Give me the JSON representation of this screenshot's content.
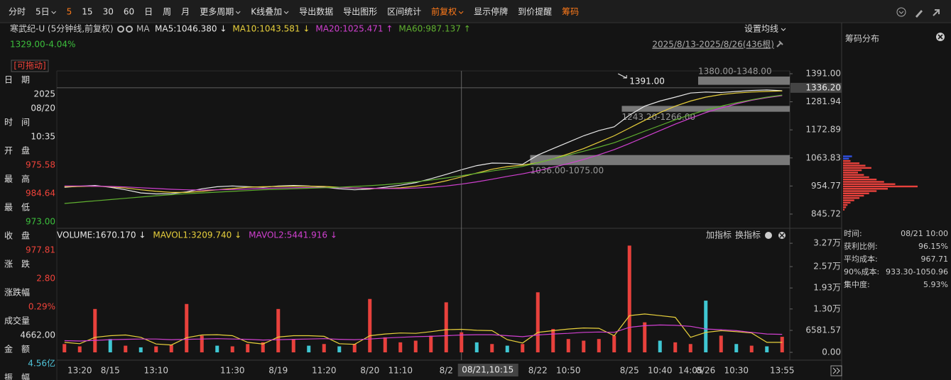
{
  "toolbar": {
    "items": [
      {
        "text": "分时"
      },
      {
        "text": "5日",
        "dropdown": true
      },
      {
        "text": "5",
        "active": true
      },
      {
        "text": "15"
      },
      {
        "text": "30"
      },
      {
        "text": "60"
      },
      {
        "text": "日"
      },
      {
        "text": "周"
      },
      {
        "text": "月"
      },
      {
        "text": "更多周期",
        "dropdown": true
      },
      {
        "text": "K线叠加",
        "dropdown": true
      },
      {
        "text": "导出数据"
      },
      {
        "text": "导出图形"
      },
      {
        "text": "区间统计"
      },
      {
        "text": "前复权",
        "dropdown": true,
        "active": true
      },
      {
        "text": "显示停牌"
      },
      {
        "text": "到价提醒"
      },
      {
        "text": "筹码",
        "active": true
      }
    ]
  },
  "header": {
    "stock": "寒武纪-U (5分钟线,前复权)",
    "ma_label": "MA",
    "price": "1329.00",
    "change": "-4.04%",
    "ma_settings": "设置均线",
    "range": "2025/8/13-2025/8/26(436根)"
  },
  "info_panel": {
    "drag": "[可拖动]",
    "rows": [
      {
        "label": "日　期",
        "values": [
          "2025",
          "08/20"
        ],
        "color": "#e0e0e0"
      },
      {
        "label": "时　间",
        "values": [
          "10:35"
        ],
        "color": "#e0e0e0"
      },
      {
        "label": "开　盘",
        "values": [
          "975.58"
        ],
        "color": "#f0433a"
      },
      {
        "label": "最　高",
        "values": [
          "984.64"
        ],
        "color": "#f0433a"
      },
      {
        "label": "最　低",
        "values": [
          "973.00"
        ],
        "color": "#3cbf3c"
      },
      {
        "label": "收　盘",
        "values": [
          "977.81"
        ],
        "color": "#f0433a"
      },
      {
        "label": "涨　跌",
        "values": [
          "2.80"
        ],
        "color": "#f0433a"
      },
      {
        "label": "涨跌幅",
        "values": [
          "0.29%"
        ],
        "color": "#f0433a"
      },
      {
        "label": "成交量",
        "values": [
          "4662.00"
        ],
        "color": "#e0e0e0"
      },
      {
        "label": "金　额",
        "values": [
          "4.56亿"
        ],
        "color": "#4fc3d9"
      },
      {
        "label": "振　幅",
        "values": []
      }
    ]
  },
  "volume_header": {
    "add": "加指标",
    "switch": "换指标"
  },
  "chip_panel": {
    "title": "筹码分布",
    "rows": [
      {
        "label": "时间:",
        "value": "08/21 10:00"
      },
      {
        "label": "获利比例:",
        "value": "96.15%"
      },
      {
        "label": "平均成本:",
        "value": "967.71"
      },
      {
        "label": "90%成本:",
        "value": "933.30-1050.96"
      },
      {
        "label": "集中度:",
        "value": "5.93%"
      }
    ]
  },
  "chart_data": [
    {
      "type": "line",
      "categories": [
        null,
        "13:20",
        null,
        "8/15",
        null,
        null,
        "13:10",
        null,
        null,
        null,
        null,
        "11:30",
        null,
        null,
        "8/19",
        null,
        null,
        "11:20",
        null,
        null,
        "8/20",
        null,
        "11:10",
        null,
        null,
        "8/2",
        null,
        null,
        null,
        null,
        null,
        "8/22",
        null,
        "10:50",
        null,
        null,
        null,
        "8/25",
        null,
        "10:40",
        null,
        "14:05",
        "8/26",
        null,
        "10:30",
        null,
        null,
        "13:55"
      ],
      "series": [
        {
          "name": "MA5:1046.380 ↓",
          "color": "#e8e8e8",
          "values": [
            950,
            954,
            957,
            950,
            940,
            928,
            924,
            925,
            932,
            944,
            952,
            955,
            952,
            950,
            955,
            957,
            955,
            950,
            944,
            940,
            943,
            950,
            958,
            968,
            983,
            1000,
            1018,
            1034,
            1044,
            1043,
            1039,
            1075,
            1100,
            1125,
            1150,
            1170,
            1185,
            1230,
            1265,
            1285,
            1300,
            1316,
            1320,
            1318,
            1322,
            1326,
            1328,
            1325
          ]
        },
        {
          "name": "MA10:1043.581 ↓",
          "color": "#e8d03c",
          "values": [
            952,
            953,
            954,
            952,
            947,
            940,
            934,
            930,
            930,
            934,
            940,
            945,
            950,
            952,
            953,
            954,
            954,
            953,
            950,
            947,
            945,
            945,
            948,
            954,
            962,
            975,
            990,
            1005,
            1020,
            1030,
            1036,
            1045,
            1060,
            1080,
            1100,
            1125,
            1150,
            1180,
            1210,
            1240,
            1265,
            1285,
            1300,
            1310,
            1316,
            1320,
            1322,
            1324
          ]
        },
        {
          "name": "MA20:1025.471 ↑",
          "color": "#d040d0",
          "values": [
            955,
            955,
            954,
            953,
            951,
            948,
            945,
            942,
            940,
            939,
            940,
            941,
            943,
            945,
            947,
            948,
            949,
            949,
            948,
            947,
            946,
            945,
            945,
            947,
            950,
            955,
            962,
            971,
            981,
            992,
            1002,
            1014,
            1028,
            1042,
            1058,
            1076,
            1096,
            1120,
            1145,
            1170,
            1195,
            1218,
            1240,
            1258,
            1274,
            1288,
            1298,
            1306
          ]
        },
        {
          "name": "MA60:987.137 ↑",
          "color": "#60b030",
          "values": [
            887,
            892,
            897,
            902,
            907,
            912,
            917,
            921,
            925,
            928,
            931,
            934,
            937,
            940,
            942,
            944,
            946,
            948,
            950,
            953,
            956,
            960,
            965,
            971,
            978,
            986,
            995,
            1004,
            1013,
            1022,
            1031,
            1045,
            1060,
            1075,
            1090,
            1106,
            1123,
            1145,
            1168,
            1190,
            1212,
            1232,
            1250,
            1265,
            1278,
            1290,
            1300,
            1308
          ]
        }
      ],
      "ylim": [
        796,
        1402
      ],
      "yticks": [
        {
          "value": 845.72,
          "label": "845.72"
        },
        {
          "value": 954.77,
          "label": "954.77"
        },
        {
          "value": 1063.83,
          "label": "1063.83"
        },
        {
          "value": 1172.89,
          "label": "1172.89"
        },
        {
          "value": 1281.94,
          "label": "1281.94"
        },
        {
          "value": 1391,
          "label": "1391.00"
        }
      ],
      "grid": false,
      "zones": [
        {
          "label": "1380.00-1348.00",
          "from": 1380,
          "to": 1348,
          "start": 42,
          "label_side": "above"
        },
        {
          "label": "1243.20-1266.00",
          "from": 1243.2,
          "to": 1266,
          "start": 37,
          "label_side": "below"
        },
        {
          "label": "1036.00-1075.00",
          "from": 1036,
          "to": 1075,
          "start": 31,
          "label_side": "below"
        }
      ],
      "peak": {
        "x": 37,
        "value": 1391,
        "label": "1391.00"
      },
      "crosshair": {
        "x": 26,
        "value": 1336.2,
        "label": "1336.20",
        "x_label": "08/21,10:15"
      }
    },
    {
      "type": "bar",
      "series": [
        {
          "name": "VOLUME:1670.170 ↓",
          "type": "bar",
          "color": "#e8e8e8",
          "values": [
            2500,
            1800,
            13000,
            4000,
            2000,
            1500,
            1800,
            2200,
            14500,
            5000,
            2000,
            1800,
            2500,
            3000,
            13000,
            4000,
            2000,
            2500,
            1800,
            2500,
            16000,
            4500,
            3000,
            3500,
            5000,
            15000,
            6000,
            3000,
            2500,
            2000,
            2500,
            18000,
            7000,
            4000,
            3500,
            4000,
            5000,
            32000,
            9000,
            3500,
            3000,
            2500,
            15500,
            5000,
            2500,
            2000,
            1800,
            4662
          ],
          "colors": [
            "#e8413c",
            "#e8413c",
            "#e8413c",
            "#3fc7d3",
            "#e8413c",
            "#3fc7d3",
            "#e8413c",
            "#e8413c",
            "#e8413c",
            "#e8413c",
            "#3fc7d3",
            "#e8413c",
            "#e8413c",
            "#e8413c",
            "#e8413c",
            "#e8413c",
            "#3fc7d3",
            "#e8413c",
            "#3fc7d3",
            "#e8413c",
            "#e8413c",
            "#e8413c",
            "#e8413c",
            "#e8413c",
            "#e8413c",
            "#e8413c",
            "#e8413c",
            "#3fc7d3",
            "#e8413c",
            "#3fc7d3",
            "#e8413c",
            "#e8413c",
            "#e8413c",
            "#e8413c",
            "#e8413c",
            "#e8413c",
            "#e8413c",
            "#e8413c",
            "#e8413c",
            "#3fc7d3",
            "#e8413c",
            "#e8413c",
            "#3fc7d3",
            "#e8413c",
            "#3fc7d3",
            "#e8413c",
            "#3fc7d3",
            "#e8413c"
          ]
        },
        {
          "name": "MAVOL1:3209.740 ↓",
          "type": "line",
          "color": "#e8d03c",
          "values": [
            3000,
            2600,
            4500,
            5000,
            5200,
            4500,
            2500,
            2200,
            4400,
            5200,
            5300,
            5000,
            3000,
            2500,
            4600,
            5000,
            5000,
            4800,
            2600,
            2400,
            5000,
            5500,
            5800,
            5700,
            6200,
            6800,
            6900,
            6600,
            6500,
            3800,
            2800,
            6000,
            6500,
            7000,
            7300,
            7200,
            5000,
            11000,
            11500,
            11000,
            10500,
            4500,
            6000,
            6500,
            6200,
            5800,
            3000,
            3000
          ]
        },
        {
          "name": "MAVOL2:5441.916 ↓",
          "type": "line",
          "color": "#d040d0",
          "values": [
            3500,
            3400,
            3600,
            3800,
            3900,
            4000,
            4000,
            3800,
            3900,
            4000,
            4100,
            4000,
            3900,
            3700,
            3800,
            3900,
            4000,
            4100,
            3900,
            3800,
            4000,
            4300,
            4500,
            4700,
            4800,
            5000,
            5200,
            5300,
            5300,
            5000,
            4700,
            5200,
            5500,
            5700,
            6000,
            6100,
            6000,
            7500,
            8000,
            8200,
            8100,
            7800,
            7000,
            6800,
            6500,
            6000,
            5500,
            5400
          ]
        }
      ],
      "ylim": [
        0,
        34000
      ],
      "yticks": [
        {
          "value": 0,
          "label": "0.00"
        },
        6581.57,
        {
          "value": 13000,
          "label": "1.30万"
        },
        {
          "value": 19300,
          "label": "1.93万"
        },
        {
          "value": 25700,
          "label": "2.57万"
        },
        {
          "value": 32700,
          "label": "3.27万"
        }
      ],
      "grid": false
    },
    {
      "type": "hbar",
      "y": [
        1070,
        1061,
        1052,
        1043,
        1034,
        1025,
        1016,
        1007,
        998,
        989,
        980,
        971,
        962,
        953,
        944,
        935,
        926,
        917,
        908,
        899,
        890,
        881,
        872,
        863
      ],
      "values": [
        12,
        8,
        10,
        22,
        30,
        38,
        25,
        20,
        28,
        35,
        45,
        55,
        70,
        100,
        60,
        45,
        35,
        28,
        22,
        15,
        10,
        6,
        4,
        2
      ],
      "colors": [
        "#3050e0",
        "#3050e0",
        "#e8413c",
        "#e8413c",
        "#e8413c",
        "#e8413c",
        "#e8413c",
        "#e8413c",
        "#e8413c",
        "#e8413c",
        "#e8413c",
        "#e8413c",
        "#e8413c",
        "#e8413c",
        "#e8413c",
        "#e8413c",
        "#e8413c",
        "#e8413c",
        "#e8413c",
        "#e8413c",
        "#e8413c",
        "#e8413c",
        "#e8413c",
        "#e8413c"
      ],
      "xlim": [
        0,
        100
      ],
      "ylim": [
        796,
        1402
      ]
    }
  ]
}
